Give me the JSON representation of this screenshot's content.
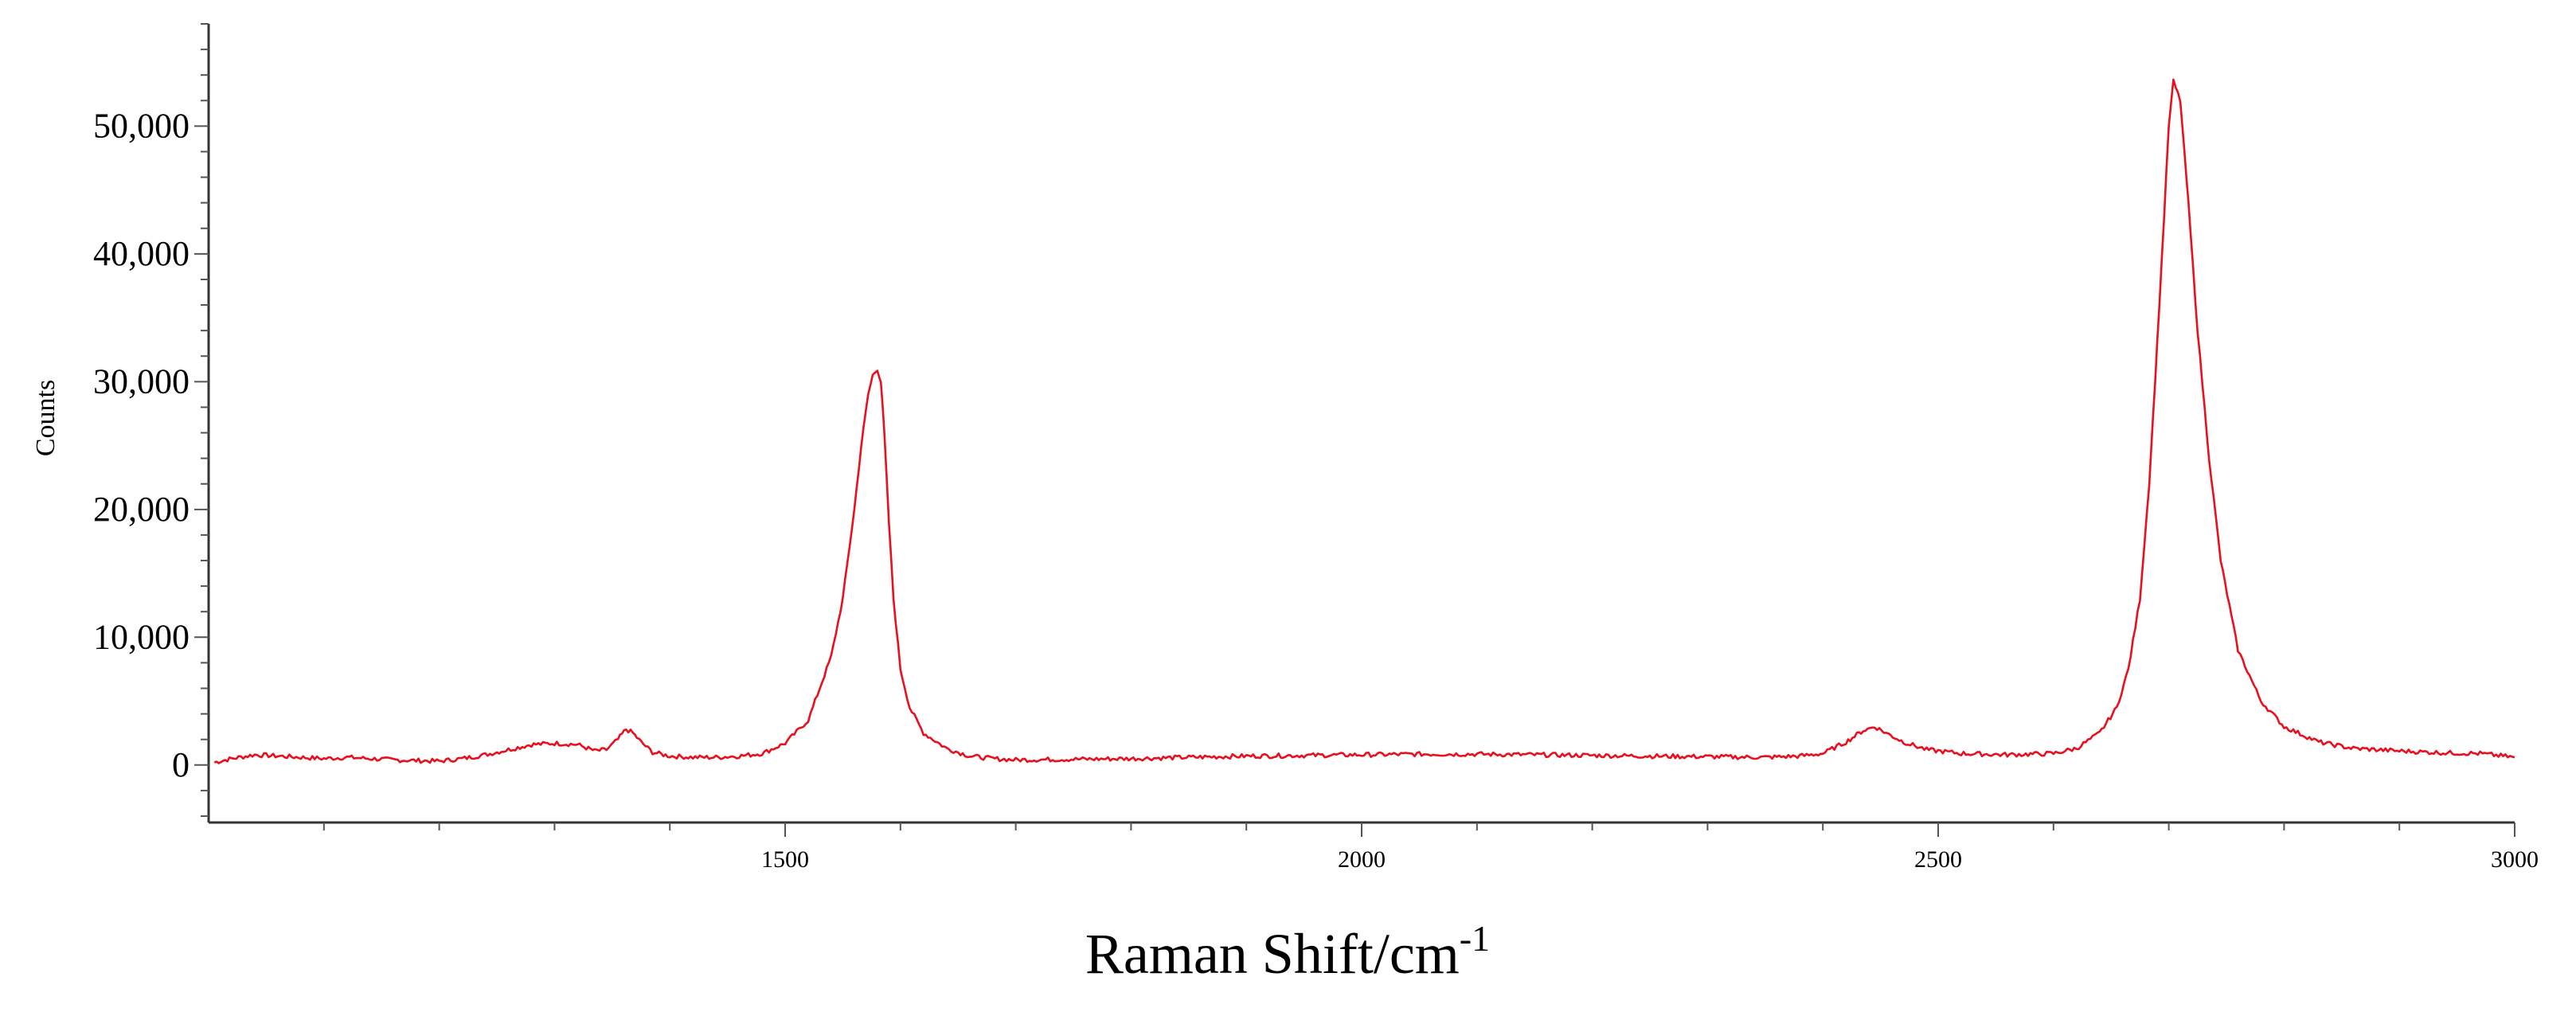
{
  "chart_data": {
    "type": "line",
    "title": "",
    "xlabel": "Raman Shift/cm",
    "xlabel_superscript": "-1",
    "ylabel": "Counts",
    "xlim": [
      1000,
      3000
    ],
    "ylim": [
      -4500,
      58000
    ],
    "x_ticks": [
      1500,
      2000,
      2500,
      3000
    ],
    "x_tick_labels": [
      "1500",
      "2000",
      "2500",
      "3000"
    ],
    "y_ticks": [
      0,
      10000,
      20000,
      30000,
      40000,
      50000
    ],
    "y_tick_labels": [
      "0",
      "10,000",
      "20,000",
      "30,000",
      "40,000",
      "50,000"
    ],
    "grid": false,
    "series": [
      {
        "color": "#e8101e",
        "x": [
          1005,
          1020,
          1040,
          1060,
          1080,
          1100,
          1120,
          1140,
          1160,
          1180,
          1200,
          1220,
          1240,
          1260,
          1280,
          1300,
          1320,
          1335,
          1345,
          1355,
          1362,
          1368,
          1375,
          1385,
          1400,
          1420,
          1440,
          1460,
          1480,
          1500,
          1520,
          1540,
          1550,
          1560,
          1566,
          1572,
          1576,
          1580,
          1583,
          1586,
          1590,
          1594,
          1600,
          1608,
          1620,
          1640,
          1660,
          1680,
          1700,
          1750,
          1800,
          1850,
          1900,
          1950,
          2000,
          2050,
          2100,
          2150,
          2200,
          2250,
          2300,
          2350,
          2380,
          2400,
          2420,
          2435,
          2445,
          2455,
          2470,
          2490,
          2520,
          2560,
          2600,
          2620,
          2640,
          2655,
          2665,
          2675,
          2683,
          2690,
          2696,
          2700,
          2704,
          2710,
          2717,
          2725,
          2735,
          2745,
          2760,
          2780,
          2800,
          2830,
          2860,
          2900,
          2940,
          2970,
          3000
        ],
        "values": [
          200,
          500,
          800,
          700,
          600,
          500,
          600,
          500,
          400,
          350,
          300,
          500,
          800,
          1200,
          1600,
          1700,
          1600,
          1100,
          1200,
          2000,
          2800,
          2500,
          1800,
          1000,
          700,
          600,
          600,
          700,
          900,
          1700,
          3500,
          8500,
          13000,
          20000,
          25000,
          29000,
          30500,
          31000,
          30000,
          26000,
          19000,
          13000,
          7500,
          4500,
          2500,
          1300,
          700,
          500,
          400,
          450,
          500,
          600,
          700,
          750,
          800,
          850,
          850,
          800,
          750,
          700,
          650,
          600,
          700,
          900,
          1800,
          2700,
          3000,
          2500,
          1800,
          1200,
          900,
          800,
          900,
          1300,
          2500,
          4500,
          7500,
          13000,
          22000,
          33000,
          43000,
          50000,
          53500,
          52000,
          44000,
          34000,
          24000,
          16000,
          9000,
          5000,
          3000,
          1800,
          1300,
          1100,
          950,
          900,
          600
        ]
      }
    ]
  }
}
